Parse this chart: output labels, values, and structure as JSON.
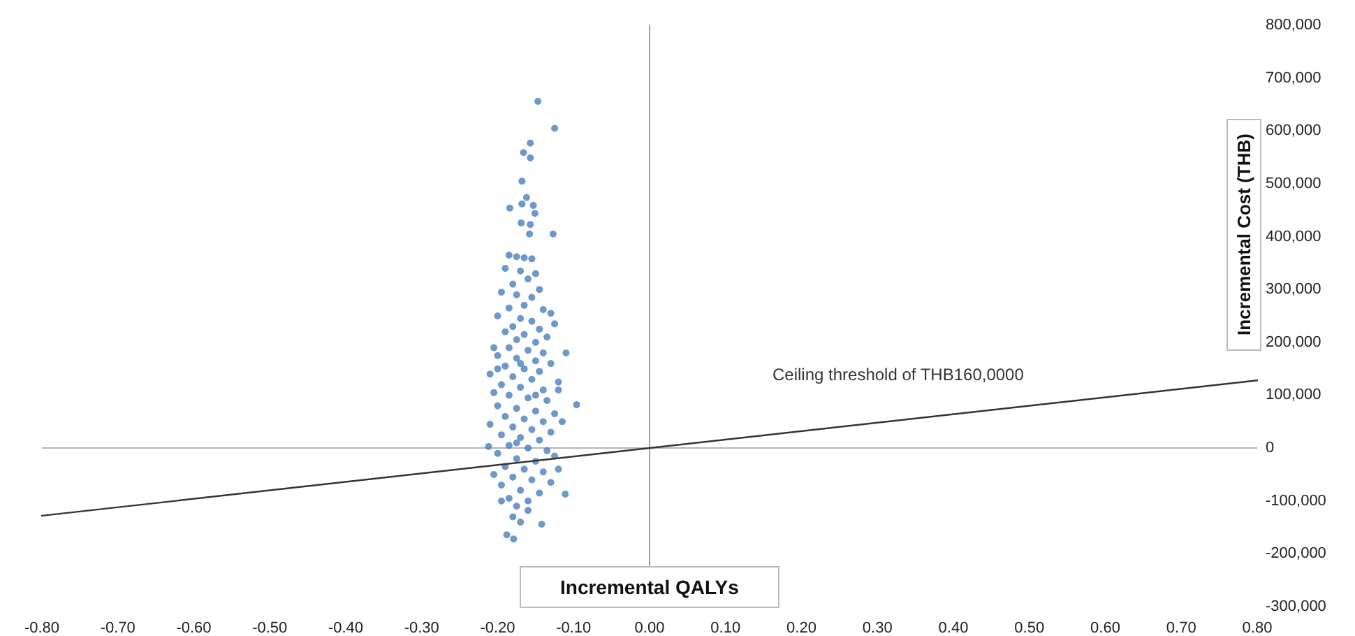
{
  "chart_data": {
    "type": "scatter",
    "xlabel": "Incremental QALYs",
    "ylabel": "Incremental Cost (THB)",
    "xlim": [
      -0.8,
      0.8
    ],
    "xticks": [
      {
        "value": -0.8,
        "label": "-0.80"
      },
      {
        "value": -0.7,
        "label": "-0.70"
      },
      {
        "value": -0.6,
        "label": "-0.60"
      },
      {
        "value": -0.5,
        "label": "-0.50"
      },
      {
        "value": -0.4,
        "label": "-0.40"
      },
      {
        "value": -0.3,
        "label": "-0.30"
      },
      {
        "value": -0.2,
        "label": "-0.20"
      },
      {
        "value": -0.1,
        "label": "-0.10"
      },
      {
        "value": 0,
        "label": "0.00"
      },
      {
        "value": 0.1,
        "label": "0.10"
      },
      {
        "value": 0.2,
        "label": "0.20"
      },
      {
        "value": 0.3,
        "label": "0.30"
      },
      {
        "value": 0.4,
        "label": "0.40"
      },
      {
        "value": 0.5,
        "label": "0.50"
      },
      {
        "value": 0.6,
        "label": "0.60"
      },
      {
        "value": 0.7,
        "label": "0.70"
      },
      {
        "value": 0.8,
        "label": "0.80"
      }
    ],
    "ylim": [
      -300000,
      800000
    ],
    "yticks": [
      {
        "value": -300000,
        "label": "-300,000"
      },
      {
        "value": -200000,
        "label": "-200,000"
      },
      {
        "value": -100000,
        "label": "-100,000"
      },
      0,
      {
        "value": 100000,
        "label": "100,000"
      },
      {
        "value": 200000,
        "label": "200,000"
      },
      {
        "value": 300000,
        "label": "300,000"
      },
      {
        "value": 400000,
        "label": "400,000"
      },
      {
        "value": 500000,
        "label": "500,000"
      },
      {
        "value": 600000,
        "label": "600,000"
      },
      {
        "value": 700000,
        "label": "700,000"
      },
      {
        "value": 800000,
        "label": "800,000"
      }
    ],
    "grid": false,
    "marker": "circle",
    "ref_lines": [
      {
        "axis": "x",
        "value": 0,
        "color": "#a0a0a0"
      },
      {
        "axis": "y",
        "value": 0,
        "color": "#b4b4b4"
      }
    ],
    "annotations": [
      "Ceiling threshold of THB160,0000"
    ],
    "series": [
      {
        "color": "#4a7ebb",
        "x": [
          -0.147,
          -0.125,
          -0.157,
          -0.166,
          -0.157,
          -0.168,
          -0.162,
          -0.184,
          -0.168,
          -0.153,
          -0.151,
          -0.169,
          -0.157,
          -0.158,
          -0.127,
          -0.185,
          -0.175,
          -0.165,
          -0.155,
          -0.19,
          -0.17,
          -0.15,
          -0.16,
          -0.18,
          -0.145,
          -0.195,
          -0.175,
          -0.155,
          -0.165,
          -0.185,
          -0.14,
          -0.13,
          -0.2,
          -0.17,
          -0.155,
          -0.18,
          -0.145,
          -0.19,
          -0.165,
          -0.135,
          -0.175,
          -0.15,
          -0.125,
          -0.11,
          -0.205,
          -0.185,
          -0.16,
          -0.14,
          -0.2,
          -0.175,
          -0.15,
          -0.13,
          -0.19,
          -0.165,
          -0.145,
          -0.21,
          -0.18,
          -0.155,
          -0.12,
          -0.195,
          -0.17,
          -0.14,
          -0.205,
          -0.185,
          -0.16,
          -0.135,
          -0.096,
          -0.2,
          -0.175,
          -0.15,
          -0.125,
          -0.19,
          -0.165,
          -0.14,
          -0.21,
          -0.18,
          -0.155,
          -0.13,
          -0.195,
          -0.17,
          -0.145,
          -0.212,
          -0.185,
          -0.16,
          -0.135,
          -0.12,
          -0.115,
          -0.2,
          -0.17,
          -0.15,
          -0.175,
          -0.2,
          -0.175,
          -0.15,
          -0.125,
          -0.19,
          -0.165,
          -0.14,
          -0.205,
          -0.18,
          -0.155,
          -0.13,
          -0.195,
          -0.17,
          -0.145,
          -0.111,
          -0.185,
          -0.16,
          -0.175,
          -0.16,
          -0.18,
          -0.17,
          -0.142,
          -0.188,
          -0.179,
          -0.12,
          -0.195
        ],
        "values": [
          656000,
          605000,
          577000,
          559000,
          549000,
          505000,
          474000,
          454000,
          462000,
          459000,
          444000,
          426000,
          423000,
          405000,
          405000,
          365000,
          362000,
          360000,
          358000,
          340000,
          335000,
          330000,
          320000,
          310000,
          300000,
          295000,
          290000,
          285000,
          270000,
          265000,
          262000,
          255000,
          250000,
          245000,
          240000,
          230000,
          225000,
          220000,
          215000,
          210000,
          205000,
          200000,
          235000,
          180000,
          190000,
          190000,
          185000,
          180000,
          175000,
          170000,
          165000,
          160000,
          155000,
          150000,
          145000,
          140000,
          135000,
          130000,
          125000,
          120000,
          115000,
          110000,
          105000,
          100000,
          95000,
          90000,
          82000,
          80000,
          75000,
          70000,
          65000,
          60000,
          55000,
          50000,
          45000,
          40000,
          35000,
          30000,
          25000,
          20000,
          15000,
          3000,
          5000,
          0,
          -5000,
          110000,
          50000,
          150000,
          160000,
          100000,
          10000,
          -10000,
          -20000,
          -25000,
          -15000,
          -35000,
          -40000,
          -45000,
          -50000,
          -55000,
          -60000,
          -65000,
          -70000,
          -80000,
          -85000,
          -87000,
          -95000,
          -100000,
          -110000,
          -118000,
          -130000,
          -140000,
          -144000,
          -164000,
          -172000,
          -40000,
          -100000
        ]
      },
      {
        "type": "line",
        "color": "#333333",
        "marker": "none",
        "line_style": "solid",
        "x": [
          -0.8,
          0.8
        ],
        "values": [
          -128000,
          128000
        ]
      }
    ]
  }
}
